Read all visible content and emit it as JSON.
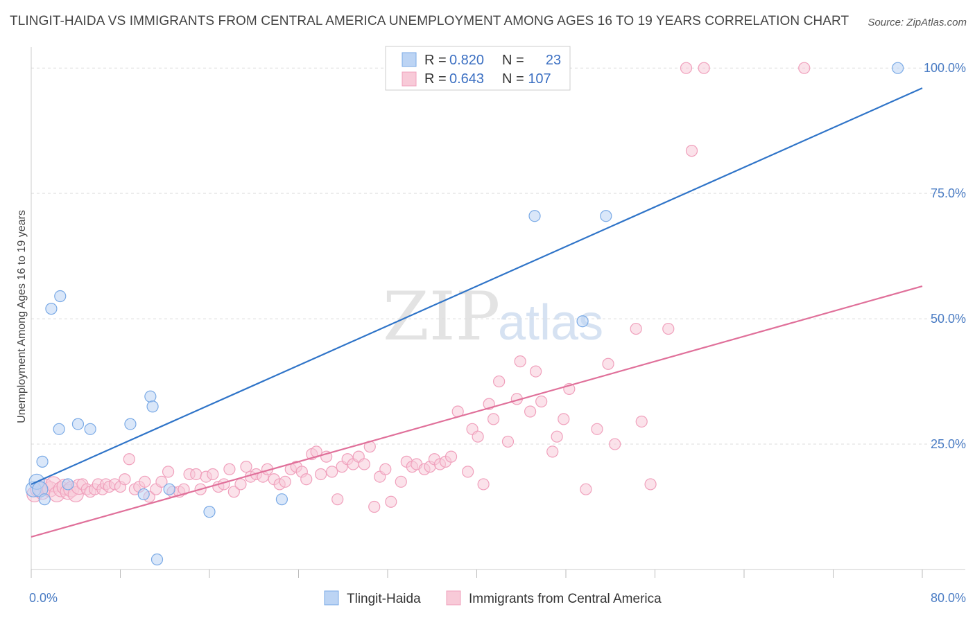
{
  "header": {
    "title": "TLINGIT-HAIDA VS IMMIGRANTS FROM CENTRAL AMERICA UNEMPLOYMENT AMONG AGES 16 TO 19 YEARS CORRELATION CHART",
    "source": "Source: ZipAtlas.com"
  },
  "watermark": {
    "zip": "ZIP",
    "atlas": "atlas"
  },
  "chart_data": {
    "type": "scatter",
    "title": "TLINGIT-HAIDA VS IMMIGRANTS FROM CENTRAL AMERICA UNEMPLOYMENT AMONG AGES 16 TO 19 YEARS CORRELATION CHART",
    "xlabel": "",
    "ylabel": "Unemployment Among Ages 16 to 19 years",
    "xlim": [
      0,
      80
    ],
    "ylim": [
      0,
      105
    ],
    "x_tick_labels": [
      "0.0%",
      "80.0%"
    ],
    "y_ticks": [
      25,
      50,
      75,
      100
    ],
    "y_tick_labels": [
      "25.0%",
      "50.0%",
      "75.0%",
      "100.0%"
    ],
    "grid": true,
    "legend_position": "top-center",
    "legend": [
      {
        "r_label": "R =",
        "r_value": "0.820",
        "n_label": "N =",
        "n_value": "23"
      },
      {
        "r_label": "R =",
        "r_value": "0.643",
        "n_label": "N =",
        "n_value": "107"
      }
    ],
    "series": [
      {
        "name": "Tlingit-Haida",
        "color": "#7aaae6",
        "fill": "#bcd4f4",
        "trend_color": "#2f74c8",
        "trend": [
          [
            0,
            17
          ],
          [
            80,
            96
          ]
        ],
        "points": [
          [
            0.2,
            16
          ],
          [
            0.5,
            17.5
          ],
          [
            0.8,
            16
          ],
          [
            1,
            21.5
          ],
          [
            1.2,
            14
          ],
          [
            1.8,
            52
          ],
          [
            2.5,
            28
          ],
          [
            2.6,
            54.5
          ],
          [
            3.3,
            17
          ],
          [
            4.2,
            29
          ],
          [
            5.3,
            28
          ],
          [
            8.9,
            29
          ],
          [
            10.1,
            15
          ],
          [
            10.7,
            34.5
          ],
          [
            10.9,
            32.5
          ],
          [
            11.3,
            2
          ],
          [
            12.4,
            16
          ],
          [
            16,
            11.5
          ],
          [
            22.5,
            14
          ],
          [
            45.2,
            70.5
          ],
          [
            49.5,
            49.5
          ],
          [
            51.6,
            70.5
          ],
          [
            77.8,
            100
          ]
        ]
      },
      {
        "name": "Immigrants from Central America",
        "color": "#f0a0bc",
        "fill": "#f8cad8",
        "trend_color": "#e0709a",
        "trend": [
          [
            0,
            6.5
          ],
          [
            80,
            56.5
          ]
        ],
        "points": [
          [
            0.3,
            15
          ],
          [
            0.6,
            16
          ],
          [
            1,
            15.5
          ],
          [
            1.3,
            16.5
          ],
          [
            1.7,
            16
          ],
          [
            2,
            17
          ],
          [
            2.3,
            15
          ],
          [
            2.7,
            16
          ],
          [
            3,
            16.5
          ],
          [
            3.3,
            15.5
          ],
          [
            3.6,
            16
          ],
          [
            4,
            15
          ],
          [
            4.3,
            16.5
          ],
          [
            4.6,
            17
          ],
          [
            5,
            16
          ],
          [
            5.3,
            15.5
          ],
          [
            5.7,
            16
          ],
          [
            6,
            17
          ],
          [
            6.4,
            16
          ],
          [
            6.7,
            17
          ],
          [
            7,
            16.5
          ],
          [
            7.5,
            17
          ],
          [
            8,
            16.5
          ],
          [
            8.4,
            18
          ],
          [
            8.8,
            22
          ],
          [
            9.3,
            16
          ],
          [
            9.7,
            16.5
          ],
          [
            10.2,
            17.5
          ],
          [
            10.6,
            14.5
          ],
          [
            11.2,
            16
          ],
          [
            11.7,
            17.5
          ],
          [
            12.3,
            19.5
          ],
          [
            12.7,
            15.5
          ],
          [
            13.3,
            15.5
          ],
          [
            13.7,
            16
          ],
          [
            14.2,
            19
          ],
          [
            14.8,
            19
          ],
          [
            15.2,
            16
          ],
          [
            15.7,
            18.5
          ],
          [
            16.3,
            19
          ],
          [
            16.8,
            16.5
          ],
          [
            17.3,
            17
          ],
          [
            17.8,
            20
          ],
          [
            18.2,
            15.5
          ],
          [
            18.8,
            17
          ],
          [
            19.3,
            20.5
          ],
          [
            19.7,
            18.5
          ],
          [
            20.2,
            19
          ],
          [
            20.8,
            18.5
          ],
          [
            21.2,
            20
          ],
          [
            21.8,
            18
          ],
          [
            22.3,
            17
          ],
          [
            22.8,
            17.5
          ],
          [
            23.3,
            20
          ],
          [
            23.8,
            20.5
          ],
          [
            24.3,
            19.5
          ],
          [
            24.7,
            18
          ],
          [
            25.2,
            23
          ],
          [
            25.6,
            23.5
          ],
          [
            26,
            19
          ],
          [
            26.5,
            22.5
          ],
          [
            27,
            19.5
          ],
          [
            27.5,
            14
          ],
          [
            27.9,
            20.5
          ],
          [
            28.4,
            22
          ],
          [
            28.9,
            21
          ],
          [
            29.4,
            22.5
          ],
          [
            29.9,
            21
          ],
          [
            30.4,
            24.5
          ],
          [
            30.8,
            12.5
          ],
          [
            31.3,
            18.5
          ],
          [
            31.8,
            20
          ],
          [
            32.3,
            13.5
          ],
          [
            33.2,
            17.5
          ],
          [
            33.7,
            21.5
          ],
          [
            34.2,
            20.5
          ],
          [
            34.6,
            21
          ],
          [
            35.3,
            20
          ],
          [
            35.8,
            20.5
          ],
          [
            36.2,
            22
          ],
          [
            36.7,
            21
          ],
          [
            37.2,
            21.5
          ],
          [
            37.7,
            22.5
          ],
          [
            38.3,
            31.5
          ],
          [
            39.2,
            19.5
          ],
          [
            39.6,
            28
          ],
          [
            40.1,
            26.5
          ],
          [
            40.6,
            17
          ],
          [
            41.1,
            33
          ],
          [
            41.5,
            30
          ],
          [
            42,
            37.5
          ],
          [
            42.8,
            25.5
          ],
          [
            43.6,
            34
          ],
          [
            43.9,
            41.5
          ],
          [
            44.8,
            31.5
          ],
          [
            45.3,
            39.5
          ],
          [
            45.8,
            33.5
          ],
          [
            46.8,
            23.5
          ],
          [
            47.2,
            26.5
          ],
          [
            47.8,
            30
          ],
          [
            48.3,
            36
          ],
          [
            49.8,
            16
          ],
          [
            50.8,
            28
          ],
          [
            51.8,
            41
          ],
          [
            52.4,
            25
          ],
          [
            54.3,
            48
          ],
          [
            54.8,
            29.5
          ],
          [
            55.6,
            17
          ],
          [
            57.2,
            48
          ],
          [
            58.8,
            100
          ],
          [
            59.3,
            83.5
          ],
          [
            60.4,
            100
          ],
          [
            69.4,
            100
          ]
        ]
      }
    ]
  },
  "bottom_legend": [
    {
      "label": "Tlingit-Haida"
    },
    {
      "label": "Immigrants from Central America"
    }
  ],
  "colors": {
    "blue": "#2f74c8",
    "pink": "#e0709a",
    "tick": "#4a7cc4",
    "grid": "#dddddd"
  }
}
